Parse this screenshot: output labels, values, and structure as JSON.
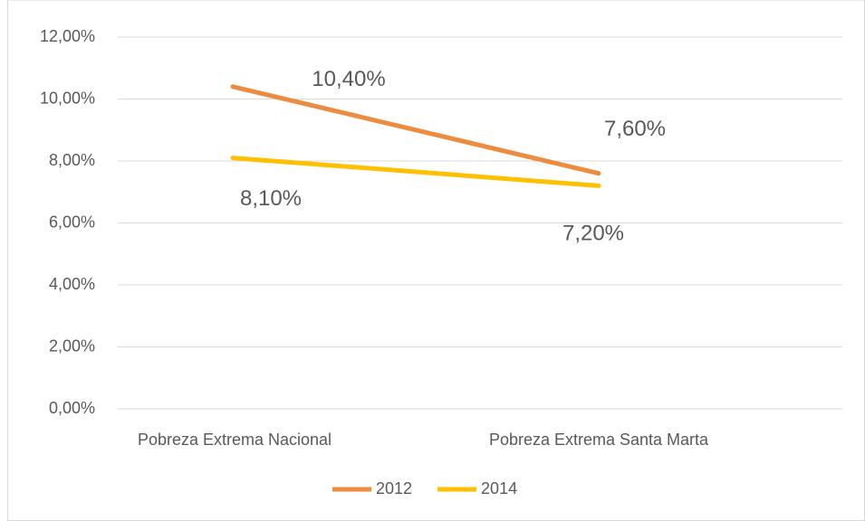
{
  "chart_data": {
    "type": "line",
    "categories": [
      "Pobreza Extrema Nacional",
      "Pobreza Extrema Santa Marta"
    ],
    "series": [
      {
        "name": "2012",
        "color": "#ed8b3f",
        "values": [
          10.4,
          7.6
        ],
        "value_labels": [
          "10,40%",
          "7,60%"
        ]
      },
      {
        "name": "2014",
        "color": "#ffc000",
        "values": [
          8.1,
          7.2
        ],
        "value_labels": [
          "8,10%",
          "7,20%"
        ]
      }
    ],
    "ylim": [
      0,
      12
    ],
    "yticks": [
      {
        "value": 0,
        "label": "0,00%"
      },
      {
        "value": 2,
        "label": "2,00%"
      },
      {
        "value": 4,
        "label": "4,00%"
      },
      {
        "value": 6,
        "label": "6,00%"
      },
      {
        "value": 8,
        "label": "8,00%"
      },
      {
        "value": 10,
        "label": "10,00%"
      },
      {
        "value": 12,
        "label": "12,00%"
      }
    ],
    "grid": true,
    "legend": "bottom"
  }
}
